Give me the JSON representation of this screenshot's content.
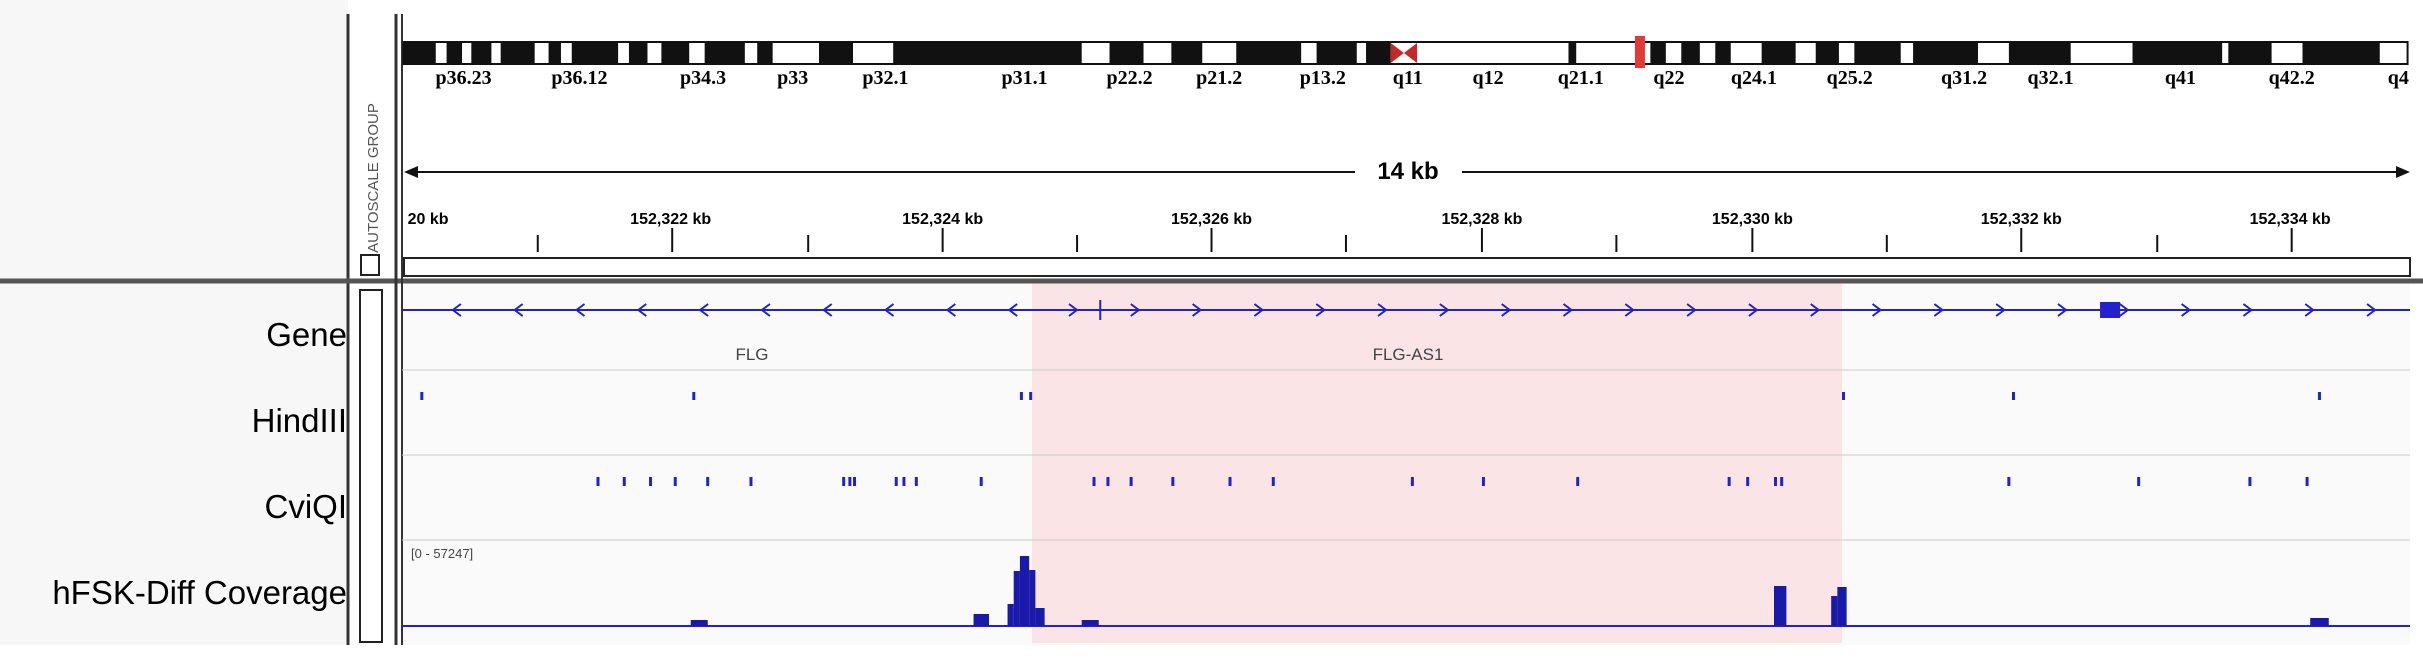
{
  "header": {
    "cytobands": [
      "p36.23",
      "p36.12",
      "p34.3",
      "p33",
      "p32.1",
      "p31.1",
      "p22.2",
      "p21.2",
      "p13.2",
      "q11",
      "q12",
      "q21.1",
      "q22",
      "q24.1",
      "q25.2",
      "q31.2",
      "q32.1",
      "q41",
      "q42.2",
      "q4"
    ],
    "span": "14 kb",
    "ruler": [
      "20 kb",
      "152,322 kb",
      "152,324 kb",
      "152,326 kb",
      "152,328 kb",
      "152,330 kb",
      "152,332 kb",
      "152,334 kb"
    ]
  },
  "autoscale": "AUTOSCALE GROUP",
  "tracks": [
    {
      "name": "Gene",
      "features": [
        "FLG",
        "FLG-AS1"
      ]
    },
    {
      "name": "HindIII"
    },
    {
      "name": "CviQI"
    },
    {
      "name": "hFSK-Diff Coverage",
      "range": "[0 - 57247]"
    }
  ]
}
